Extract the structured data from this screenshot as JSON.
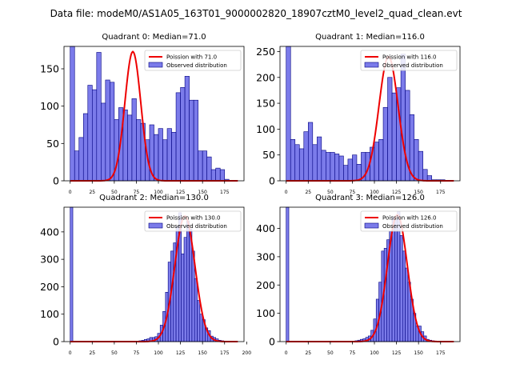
{
  "suptitle": "Data file: modeM0/AS1A05_163T01_9000002820_18907cztM0_level2_quad_clean.evt",
  "colors": {
    "bar_fill": "#7b7bea",
    "bar_edge": "#000080",
    "curve": "#ee0000"
  },
  "chart_data": [
    {
      "type": "bar",
      "title": "Quadrant 0: Median=71.0",
      "legend": {
        "curve": "Poission with 71.0",
        "bars": "Observed distribution"
      },
      "xlim": [
        -7,
        197
      ],
      "ylim": [
        0,
        180
      ],
      "xticks": [
        0,
        25,
        50,
        75,
        100,
        125,
        150,
        175
      ],
      "yticks": [
        0,
        50,
        100,
        150
      ],
      "bin_width": 5,
      "bin_starts": [
        0,
        5,
        10,
        15,
        20,
        25,
        30,
        35,
        40,
        45,
        50,
        55,
        60,
        65,
        70,
        75,
        80,
        85,
        90,
        95,
        100,
        105,
        110,
        115,
        120,
        125,
        130,
        135,
        140,
        145,
        150,
        155,
        160,
        165,
        170,
        175
      ],
      "counts": [
        185,
        40,
        58,
        90,
        128,
        122,
        172,
        104,
        135,
        132,
        82,
        98,
        95,
        88,
        110,
        82,
        77,
        55,
        75,
        62,
        70,
        55,
        70,
        65,
        118,
        125,
        140,
        108,
        108,
        40,
        40,
        32,
        15,
        17,
        15,
        2
      ],
      "curve_mean": 71,
      "curve_peak": 173,
      "curve_sigma": 9,
      "curve_x_max": 190
    },
    {
      "type": "bar",
      "title": "Quadrant 1: Median=116.0",
      "legend": {
        "curve": "Poission with 116.0",
        "bars": "Observed distribution"
      },
      "xlim": [
        -7,
        197
      ],
      "ylim": [
        0,
        260
      ],
      "xticks": [
        0,
        25,
        50,
        75,
        100,
        125,
        150,
        175
      ],
      "yticks": [
        0,
        50,
        100,
        150,
        200,
        250
      ],
      "bin_width": 5,
      "bin_starts": [
        0,
        5,
        10,
        15,
        20,
        25,
        30,
        35,
        40,
        45,
        50,
        55,
        60,
        65,
        70,
        75,
        80,
        85,
        90,
        95,
        100,
        105,
        110,
        115,
        120,
        125,
        130,
        135,
        140,
        145,
        150,
        155,
        160,
        165,
        170,
        175
      ],
      "counts": [
        260,
        80,
        70,
        62,
        95,
        113,
        70,
        85,
        59,
        55,
        55,
        52,
        48,
        30,
        42,
        50,
        32,
        55,
        55,
        65,
        75,
        80,
        142,
        200,
        170,
        180,
        245,
        175,
        128,
        80,
        57,
        22,
        10,
        2,
        2,
        2
      ],
      "curve_mean": 116,
      "curve_peak": 240,
      "curve_sigma": 10.8,
      "curve_x_max": 190
    },
    {
      "type": "bar",
      "title": "Quadrant 2: Median=130.0",
      "legend": {
        "curve": "Poission with 130.0",
        "bars": "Observed distribution"
      },
      "xlim": [
        -7,
        197
      ],
      "ylim": [
        0,
        490
      ],
      "xticks": [
        0,
        25,
        50,
        75,
        100,
        125,
        150,
        175,
        200
      ],
      "yticks": [
        0,
        100,
        200,
        300,
        400
      ],
      "bin_width": 3,
      "bin_starts": [
        0,
        78,
        81,
        84,
        87,
        90,
        93,
        96,
        99,
        102,
        105,
        108,
        111,
        114,
        117,
        120,
        123,
        126,
        129,
        132,
        135,
        138,
        141,
        144,
        147,
        150,
        153,
        156,
        159,
        162,
        165,
        168,
        171,
        174,
        177,
        180,
        183
      ],
      "counts": [
        490,
        3,
        5,
        8,
        10,
        15,
        15,
        18,
        30,
        60,
        110,
        180,
        290,
        330,
        360,
        420,
        470,
        320,
        380,
        440,
        410,
        330,
        230,
        150,
        100,
        80,
        50,
        40,
        20,
        15,
        10,
        5,
        3,
        2,
        1,
        1,
        1
      ],
      "curve_mean": 130,
      "curve_peak": 458,
      "curve_sigma": 11.4,
      "curve_x_max": 190
    },
    {
      "type": "bar",
      "title": "Quadrant 3: Median=126.0",
      "legend": {
        "curve": "Poission with 126.0",
        "bars": "Observed distribution"
      },
      "xlim": [
        -7,
        197
      ],
      "ylim": [
        0,
        475
      ],
      "xticks": [
        0,
        25,
        50,
        75,
        100,
        125,
        150,
        175
      ],
      "yticks": [
        0,
        100,
        200,
        300,
        400
      ],
      "bin_width": 3,
      "bin_starts": [
        0,
        78,
        81,
        84,
        87,
        90,
        93,
        96,
        99,
        102,
        105,
        108,
        111,
        114,
        117,
        120,
        123,
        126,
        129,
        132,
        135,
        138,
        141,
        144,
        147,
        150,
        153,
        156,
        159,
        162,
        165,
        168,
        171,
        174
      ],
      "counts": [
        475,
        3,
        5,
        8,
        10,
        15,
        20,
        40,
        80,
        150,
        210,
        320,
        330,
        360,
        390,
        440,
        430,
        460,
        375,
        320,
        260,
        210,
        150,
        100,
        55,
        55,
        35,
        20,
        8,
        5,
        3,
        2,
        1,
        1
      ],
      "curve_mean": 126,
      "curve_peak": 448,
      "curve_sigma": 11.2,
      "curve_x_max": 190
    }
  ]
}
